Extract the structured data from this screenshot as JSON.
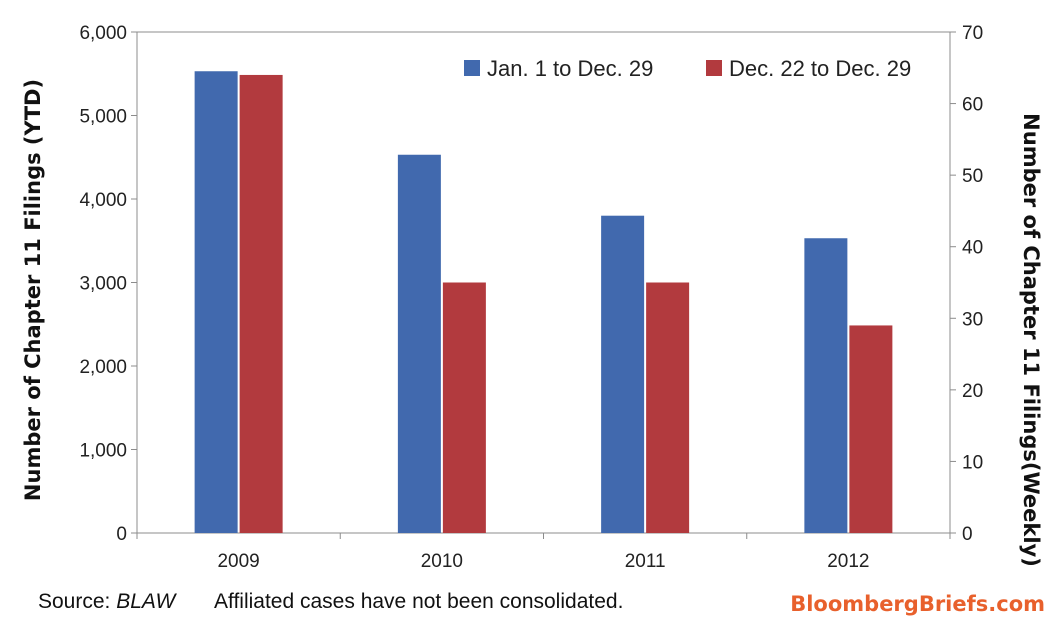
{
  "chart_data": {
    "type": "bar",
    "categories": [
      "2009",
      "2010",
      "2011",
      "2012"
    ],
    "series": [
      {
        "name": "Jan. 1 to Dec. 29",
        "axis": "left",
        "color": "#4169ae",
        "values": [
          5530,
          4530,
          3800,
          3530
        ]
      },
      {
        "name": "Dec. 22 to Dec. 29",
        "axis": "right",
        "color": "#b23a3e",
        "values": [
          64,
          35,
          35,
          29
        ]
      }
    ],
    "ylabel": "Number of Chapter 11 Filings (YTD)",
    "ylim": [
      0,
      6000
    ],
    "yticks": [
      "0",
      "1,000",
      "2,000",
      "3,000",
      "4,000",
      "5,000",
      "6,000"
    ],
    "y2label": "Number of Chapter 11 Filings(Weekly)",
    "y2lim": [
      0,
      70
    ],
    "y2ticks": [
      "0",
      "10",
      "20",
      "30",
      "40",
      "50",
      "60",
      "70"
    ],
    "grid": false,
    "legend_position": "top-right"
  },
  "footer": {
    "source_label": "Source: ",
    "source_name": "BLAW",
    "note": "Affiliated cases have not been consolidated.",
    "brand": "BloombergBriefs.com",
    "brand_color": "#e8602c"
  }
}
